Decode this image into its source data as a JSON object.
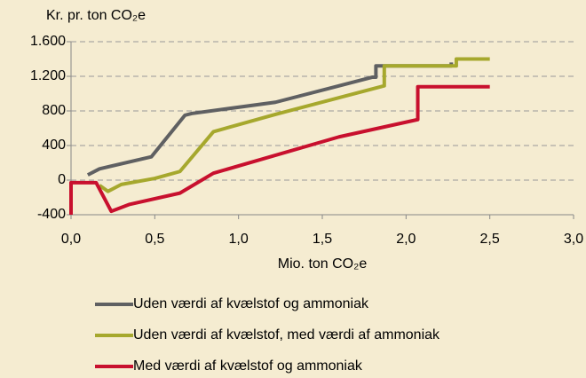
{
  "chart_data": {
    "type": "line",
    "y_label": "Kr. pr. ton CO₂e",
    "x_label": "Mio. ton CO₂e",
    "xlim": [
      0,
      3
    ],
    "xticks": [
      {
        "value": 0,
        "label": "0,0"
      },
      {
        "value": 0.5,
        "label": "0,5"
      },
      {
        "value": 1,
        "label": "1,0"
      },
      {
        "value": 1.5,
        "label": "1,5"
      },
      {
        "value": 2,
        "label": "2,0"
      },
      {
        "value": 2.5,
        "label": "2,5"
      },
      {
        "value": 3,
        "label": "3,0"
      }
    ],
    "ylim": [
      -400,
      1600
    ],
    "yticks": [
      -400,
      0,
      400,
      800,
      {
        "value": 1200,
        "label": "1.200"
      },
      {
        "value": 1600,
        "label": "1.600"
      }
    ],
    "grid": true,
    "legend": "bottom",
    "series": [
      {
        "name": "Uden værdi af kvælstof og ammoniak",
        "color": "#5f6062",
        "x": [
          0.1,
          0.17,
          0.48,
          0.68,
          0.72,
          1.22,
          1.8,
          1.82,
          1.82,
          2.27,
          2.27
        ],
        "values": [
          60,
          130,
          270,
          750,
          770,
          900,
          1190,
          1190,
          1320,
          1320,
          1360
        ]
      },
      {
        "name": "Uden værdi af kvælstof, med værdi af ammoniak",
        "color": "#a6a82d",
        "x": [
          0.17,
          0.22,
          0.3,
          0.5,
          0.65,
          0.85,
          1.22,
          1.85,
          1.87,
          1.87,
          2.3,
          2.3,
          2.5
        ],
        "values": [
          -60,
          -130,
          -50,
          20,
          100,
          560,
          760,
          1080,
          1090,
          1320,
          1320,
          1400,
          1400
        ]
      },
      {
        "name": "Med værdi af kvælstof og ammoniak",
        "color": "#c8102e",
        "x": [
          0,
          0,
          0.15,
          0.24,
          0.35,
          0.65,
          0.85,
          1.6,
          2.07,
          2.07,
          2.5
        ],
        "values": [
          -400,
          -30,
          -30,
          -360,
          -280,
          -150,
          80,
          500,
          700,
          1080,
          1080
        ]
      }
    ]
  }
}
